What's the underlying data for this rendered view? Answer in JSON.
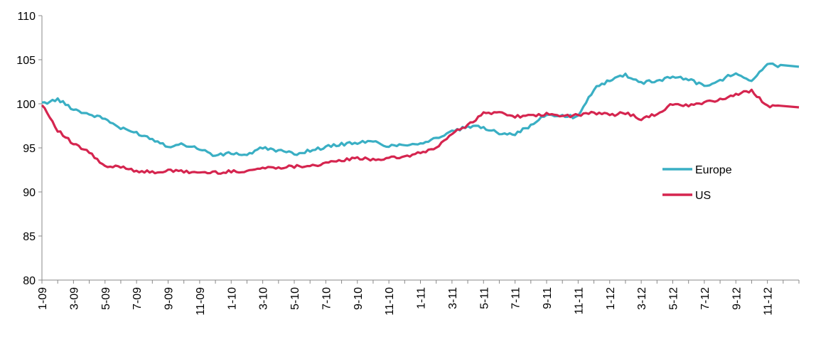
{
  "chart_data": {
    "type": "line",
    "title": "",
    "xlabel": "",
    "ylabel": "",
    "ylim": [
      80,
      110
    ],
    "y_ticks": [
      80,
      85,
      90,
      95,
      100,
      105,
      110
    ],
    "x_ticks": [
      "1-09",
      "3-09",
      "5-09",
      "7-09",
      "9-09",
      "11-09",
      "1-10",
      "3-10",
      "5-10",
      "7-10",
      "9-10",
      "11-10",
      "1-11",
      "3-11",
      "5-11",
      "7-11",
      "9-11",
      "11-11",
      "1-12",
      "3-12",
      "5-12",
      "7-12",
      "9-12",
      "11-12"
    ],
    "grid": false,
    "legend_position": "right",
    "x": [
      "2009-01",
      "2009-02",
      "2009-03",
      "2009-04",
      "2009-05",
      "2009-06",
      "2009-07",
      "2009-08",
      "2009-09",
      "2009-10",
      "2009-11",
      "2009-12",
      "2010-01",
      "2010-02",
      "2010-03",
      "2010-04",
      "2010-05",
      "2010-06",
      "2010-07",
      "2010-08",
      "2010-09",
      "2010-10",
      "2010-11",
      "2010-12",
      "2011-01",
      "2011-02",
      "2011-03",
      "2011-04",
      "2011-05",
      "2011-06",
      "2011-07",
      "2011-08",
      "2011-09",
      "2011-10",
      "2011-11",
      "2011-12",
      "2012-01",
      "2012-02",
      "2012-03",
      "2012-04",
      "2012-05",
      "2012-06",
      "2012-07",
      "2012-08",
      "2012-09",
      "2012-10",
      "2012-11",
      "2012-12"
    ],
    "series": [
      {
        "name": "Europe",
        "color": "#3aafc4",
        "values": [
          100.0,
          100.5,
          99.4,
          98.8,
          98.3,
          97.2,
          96.7,
          96.0,
          95.2,
          95.4,
          94.9,
          94.1,
          94.4,
          94.2,
          95.0,
          94.7,
          94.3,
          94.7,
          95.1,
          95.4,
          95.6,
          95.7,
          95.2,
          95.4,
          95.5,
          96.1,
          96.8,
          97.4,
          97.3,
          96.7,
          96.6,
          97.5,
          98.8,
          98.6,
          98.5,
          101.7,
          102.7,
          103.3,
          102.4,
          102.6,
          103.1,
          102.8,
          102.0,
          102.6,
          103.6,
          102.6,
          104.5,
          104.2
        ]
      },
      {
        "name": "US",
        "color": "#d5254f",
        "values": [
          100.0,
          97.0,
          95.4,
          94.5,
          92.8,
          92.9,
          92.4,
          92.2,
          92.4,
          92.3,
          92.2,
          92.2,
          92.3,
          92.4,
          92.7,
          92.8,
          92.9,
          93.0,
          93.2,
          93.6,
          93.8,
          93.7,
          93.8,
          94.0,
          94.4,
          95.0,
          96.6,
          97.6,
          98.9,
          99.0,
          98.6,
          98.6,
          98.8,
          98.6,
          98.7,
          99.0,
          98.7,
          99.0,
          98.3,
          98.8,
          100.0,
          99.8,
          100.1,
          100.5,
          101.0,
          101.5,
          99.8,
          99.6
        ]
      }
    ]
  }
}
